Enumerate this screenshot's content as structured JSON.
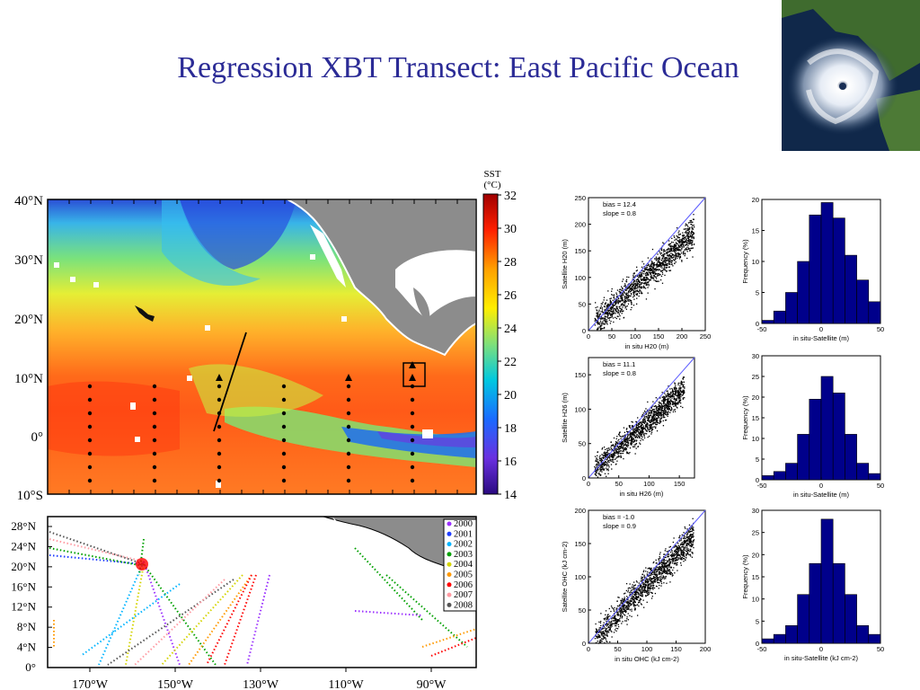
{
  "title": "Regression XBT Transect: East Pacific Ocean",
  "colors": {
    "title": "#2b2b96",
    "land": "#8c8c8c",
    "bar": "#00008b",
    "scatter": "#000000",
    "fit": "#5a5aff"
  },
  "sst_map": {
    "colorbar_title": [
      "SST",
      "(°C)"
    ],
    "colorbar_ticks": [
      "32",
      "30",
      "28",
      "26",
      "24",
      "22",
      "20",
      "18",
      "16",
      "14"
    ],
    "lat_labels": [
      "40°N",
      "30°N",
      "20°N",
      "10°N",
      "0°",
      "10°S"
    ],
    "lon_labels": [
      "170°W",
      "150°W",
      "130°W",
      "110°W",
      "90°W"
    ]
  },
  "track_map": {
    "lat_labels": [
      "28°N",
      "24°N",
      "20°N",
      "16°N",
      "12°N",
      "8°N",
      "4°N",
      "0°"
    ],
    "legend": [
      {
        "year": "2000",
        "color": "#9b30ff"
      },
      {
        "year": "2001",
        "color": "#1e3cff"
      },
      {
        "year": "2002",
        "color": "#00b4ff"
      },
      {
        "year": "2003",
        "color": "#00a000"
      },
      {
        "year": "2004",
        "color": "#d4d400"
      },
      {
        "year": "2005",
        "color": "#ff9900"
      },
      {
        "year": "2006",
        "color": "#ff0000"
      },
      {
        "year": "2007",
        "color": "#ff9aa2"
      },
      {
        "year": "2008",
        "color": "#555555"
      }
    ]
  },
  "chart_data": [
    {
      "type": "scatter",
      "panel": "H20 regression",
      "stats": [
        "bias =  12.4",
        "slope =   0.8"
      ],
      "xlabel": "in situ H20 (m)",
      "ylabel": "Satellite H20 (m)",
      "xticks": [
        "0",
        "50",
        "100",
        "150",
        "200",
        "250"
      ],
      "yticks": [
        "0",
        "50",
        "100",
        "150",
        "200",
        "250"
      ],
      "xlim": [
        0,
        250
      ],
      "ylim": [
        0,
        250
      ],
      "bias": 12.4,
      "slope": 0.8
    },
    {
      "type": "bar",
      "panel": "H20 difference histogram",
      "xlabel": "in situ-Satellite (m)",
      "ylabel": "Frequency (%)",
      "xticks": [
        "-50",
        "0",
        "50"
      ],
      "yticks": [
        "0",
        "5",
        "10",
        "15",
        "20"
      ],
      "xlim": [
        -50,
        50
      ],
      "ylim": [
        0,
        20
      ],
      "bin_centers": [
        -45,
        -35,
        -25,
        -15,
        -5,
        5,
        15,
        25,
        35,
        45
      ],
      "values": [
        0.5,
        2,
        5,
        10,
        17.5,
        19.5,
        17,
        11,
        7,
        3.5
      ]
    },
    {
      "type": "scatter",
      "panel": "H26 regression",
      "stats": [
        "bias =  11.1",
        "slope =   0.8"
      ],
      "xlabel": "in situ H26 (m)",
      "ylabel": "Satellite H26 (m)",
      "xticks": [
        "0",
        "50",
        "100",
        "150"
      ],
      "yticks": [
        "0",
        "50",
        "100",
        "150"
      ],
      "xlim": [
        0,
        175
      ],
      "ylim": [
        0,
        175
      ],
      "bias": 11.1,
      "slope": 0.8
    },
    {
      "type": "bar",
      "panel": "H26 difference histogram",
      "xlabel": "in situ-Satellite (m)",
      "ylabel": "Frequency (%)",
      "xticks": [
        "-50",
        "0",
        "50"
      ],
      "yticks": [
        "0",
        "5",
        "10",
        "15",
        "20",
        "25",
        "30"
      ],
      "xlim": [
        -50,
        50
      ],
      "ylim": [
        0,
        30
      ],
      "bin_centers": [
        -45,
        -35,
        -25,
        -15,
        -5,
        5,
        15,
        25,
        35,
        45
      ],
      "values": [
        1,
        2,
        4,
        11,
        19.5,
        25,
        21,
        11,
        4,
        1.5
      ]
    },
    {
      "type": "scatter",
      "panel": "OHC regression",
      "stats": [
        "bias =  -1.0",
        "slope =   0.9"
      ],
      "xlabel": "in situ OHC (kJ cm-2)",
      "ylabel": "Satellite OHC (kJ cm-2)",
      "xticks": [
        "0",
        "50",
        "100",
        "150",
        "200"
      ],
      "yticks": [
        "0",
        "50",
        "100",
        "150",
        "200"
      ],
      "xlim": [
        0,
        200
      ],
      "ylim": [
        0,
        200
      ],
      "bias": -1.0,
      "slope": 0.9
    },
    {
      "type": "bar",
      "panel": "OHC difference histogram",
      "xlabel": "in situ-Satellite (kJ cm-2)",
      "ylabel": "Frequency (%)",
      "xticks": [
        "-50",
        "0",
        "50"
      ],
      "yticks": [
        "0",
        "5",
        "10",
        "15",
        "20",
        "25",
        "30"
      ],
      "xlim": [
        -50,
        50
      ],
      "ylim": [
        0,
        30
      ],
      "bin_centers": [
        -45,
        -35,
        -25,
        -15,
        -5,
        5,
        15,
        25,
        35,
        45
      ],
      "values": [
        1,
        2,
        4,
        11,
        18,
        28,
        18,
        11,
        4,
        2
      ]
    }
  ]
}
